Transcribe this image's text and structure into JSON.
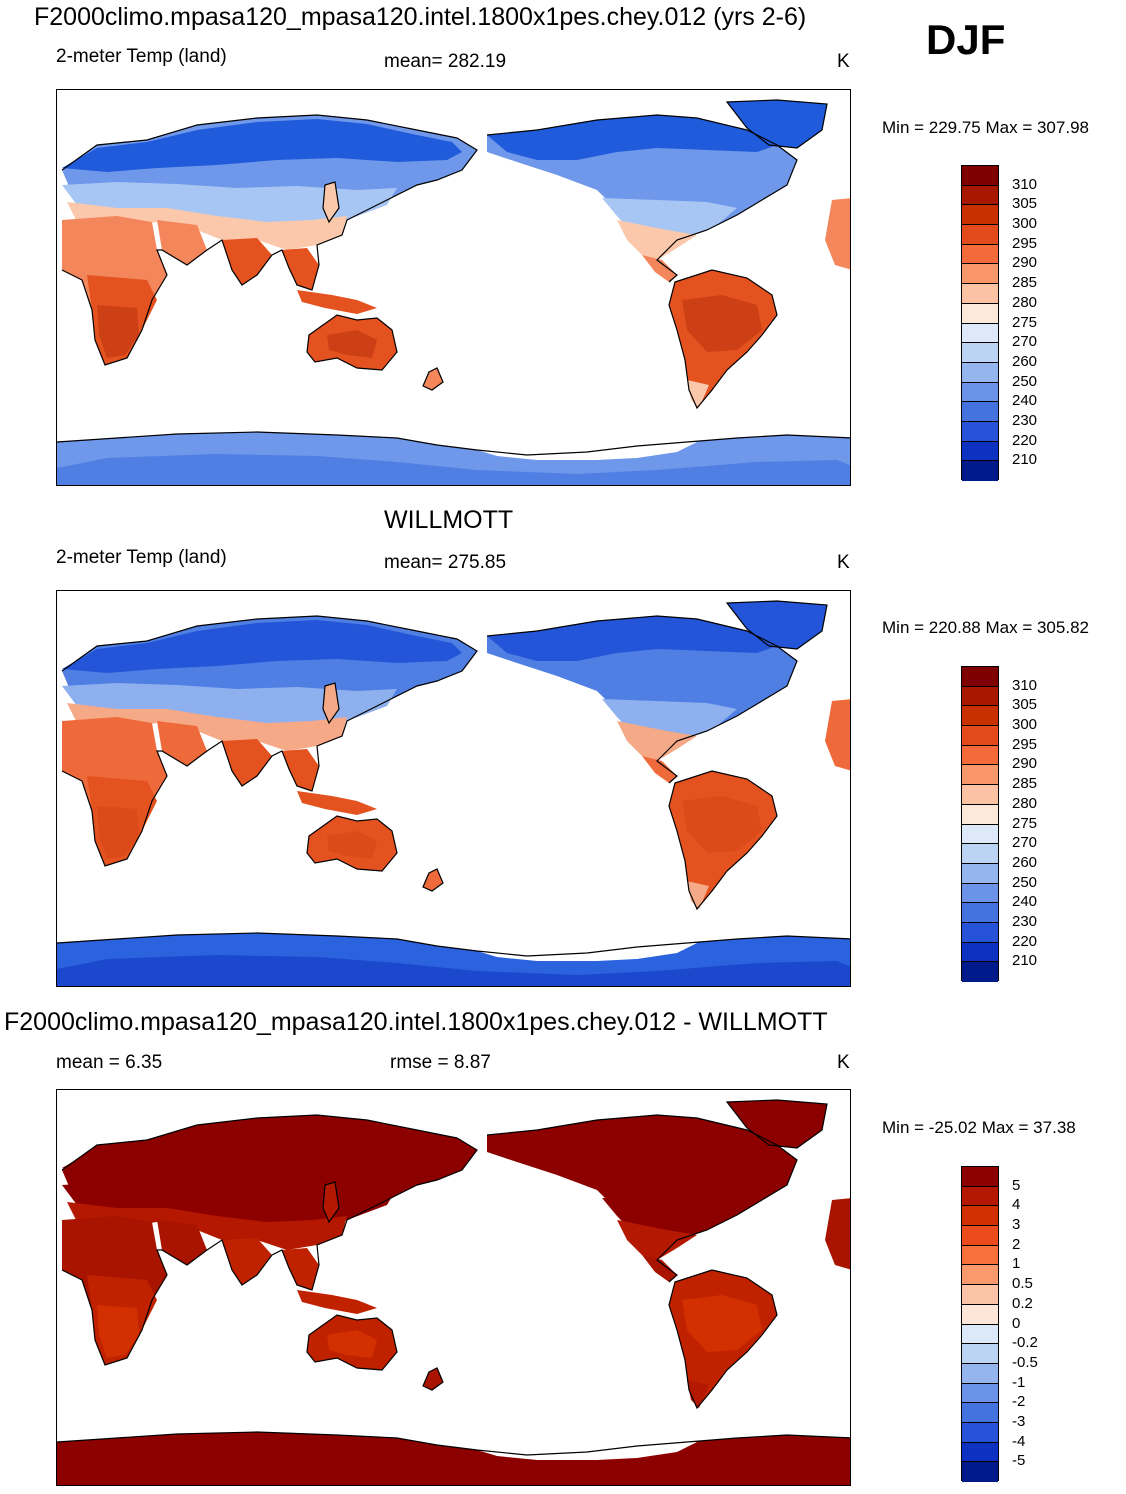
{
  "season": "DJF",
  "units_label": "K",
  "panel1": {
    "title": "F2000climo.mpasa120_mpasa120.intel.1800x1pes.chey.012 (yrs 2-6)",
    "variable": "2-meter Temp (land)",
    "stat": "mean= 282.19",
    "units": "K",
    "minmax": "Min = 229.75 Max = 307.98"
  },
  "panel2": {
    "title": "WILLMOTT",
    "variable": "2-meter Temp (land)",
    "stat": "mean= 275.85",
    "units": "K",
    "minmax": "Min = 220.88 Max = 305.82"
  },
  "panel3": {
    "title": "F2000climo.mpasa120_mpasa120.intel.1800x1pes.chey.012 - WILLMOTT",
    "stat_mean": "mean =   6.35",
    "stat_rmse": "rmse =   8.87",
    "units": "K",
    "minmax": "Min = -25.02 Max =  37.38"
  },
  "colorbar_abs": {
    "labels": [
      "310",
      "305",
      "300",
      "295",
      "290",
      "285",
      "280",
      "275",
      "270",
      "260",
      "250",
      "240",
      "230",
      "220",
      "210"
    ],
    "colors": [
      "#7f0000",
      "#a81800",
      "#c93000",
      "#e34a1c",
      "#f46a3a",
      "#f9966a",
      "#fbc3a3",
      "#fde9dc",
      "#dde9f9",
      "#bcd4f4",
      "#94b5ee",
      "#6b93e8",
      "#4472df",
      "#2552d6",
      "#0d31c0",
      "#001a8c"
    ]
  },
  "colorbar_diff": {
    "labels": [
      "5",
      "4",
      "3",
      "2",
      "1",
      "0.5",
      "0.2",
      "0",
      "-0.2",
      "-0.5",
      "-1",
      "-2",
      "-3",
      "-4",
      "-5"
    ],
    "colors": [
      "#8c0000",
      "#b41800",
      "#d23000",
      "#ec4c1c",
      "#f8703c",
      "#fa9a6c",
      "#fbc4a6",
      "#fde6d8",
      "#dce9f9",
      "#bcd4f4",
      "#94b5ee",
      "#6b93e8",
      "#4472df",
      "#2552d6",
      "#0d31c0",
      "#001a8c"
    ]
  },
  "maps": [
    {
      "name": "model-temperature-map",
      "layers": {
        "high": "#1f5bdb",
        "north": "#6f97ea",
        "mid": "#a8c6f4",
        "warm": "#fbc8ab",
        "sub": "#f3865b",
        "trop": "#e4521f",
        "hot": "#cd3f14",
        "ant": "#6f97ea",
        "antdeep": "#4f7fe3"
      }
    },
    {
      "name": "willmott-temperature-map",
      "layers": {
        "high": "#2455d8",
        "north": "#4f7fe3",
        "mid": "#8eb0ee",
        "warm": "#f6a987",
        "sub": "#ee6a3a",
        "trop": "#e4521f",
        "hot": "#dd4a1a",
        "ant": "#2b63de",
        "antdeep": "#1b48cc"
      }
    },
    {
      "name": "difference-map",
      "layers": {
        "high": "#8c0000",
        "north": "#8c0000",
        "mid": "#8c0000",
        "warm": "#b41800",
        "sub": "#a81400",
        "trop": "#c02200",
        "hot": "#d23000",
        "ant": "#8c0000",
        "antdeep": "#8c0000"
      }
    }
  ]
}
